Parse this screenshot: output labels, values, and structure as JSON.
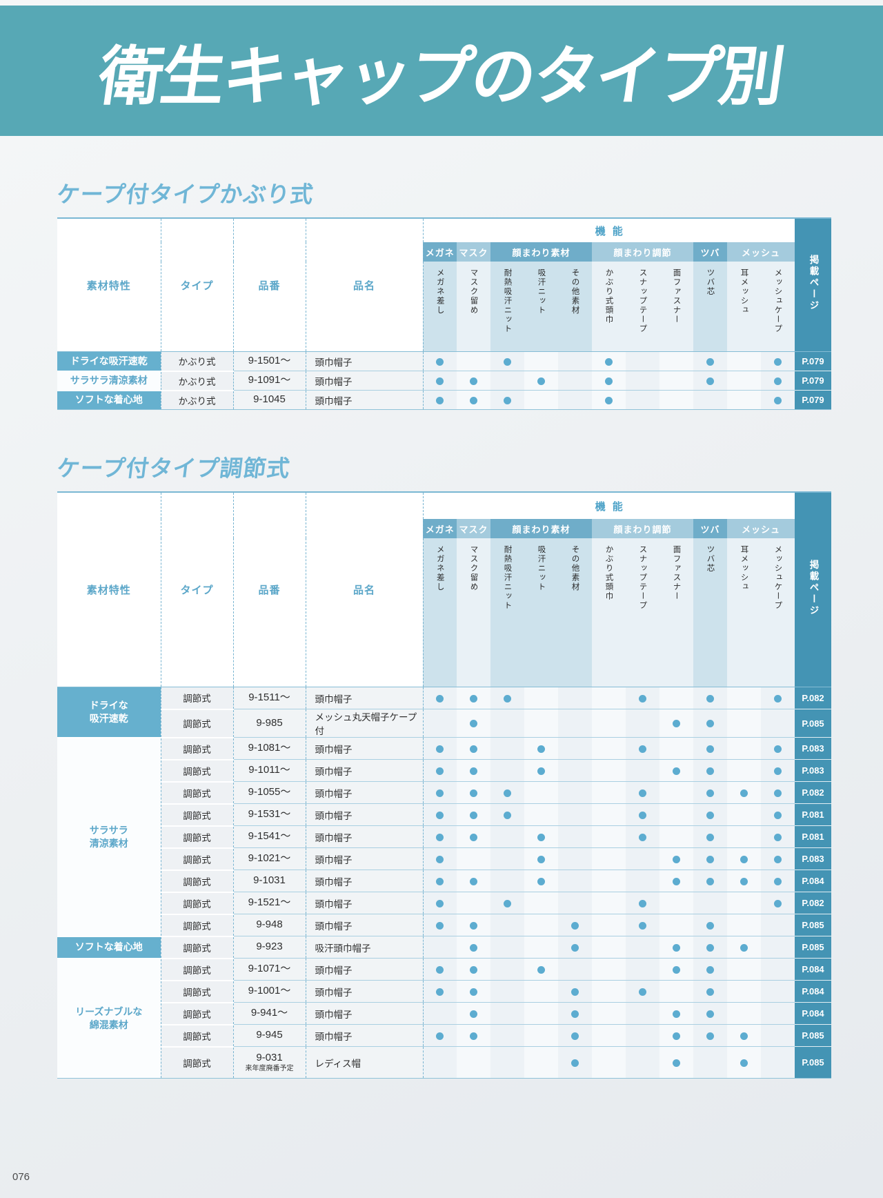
{
  "banner": {
    "title": "衛生キャップのタイプ別"
  },
  "page": {
    "footer_page_number": "076"
  },
  "colors": {
    "banner_bg": "#57a8b5",
    "section_title": "#70b6d6",
    "group_header_dark": "#6fadc9",
    "group_header_light": "#a4cbdd",
    "page_column": "#4494b4",
    "dot": "#5cacd0",
    "material_blue": "#66b0ce"
  },
  "columns": {
    "left": [
      "素材特性",
      "タイプ",
      "品番",
      "品名"
    ],
    "function_label": "機能",
    "page_label": "掲載ページ",
    "groups": [
      {
        "label": "メガネ",
        "cols": [
          "メガネ差し"
        ]
      },
      {
        "label": "マスク",
        "cols": [
          "マスク留め"
        ]
      },
      {
        "label": "顔まわり素材",
        "cols": [
          "耐熱吸汗ニット",
          "吸汗ニット",
          "その他素材"
        ]
      },
      {
        "label": "顔まわり調節",
        "cols": [
          "かぶり式頭巾",
          "スナップテープ",
          "面ファスナー"
        ]
      },
      {
        "label": "ツバ",
        "cols": [
          "ツバ芯"
        ]
      },
      {
        "label": "メッシュ",
        "cols": [
          "耳メッシュ",
          "メッシュケープ"
        ]
      }
    ]
  },
  "sections": [
    {
      "title": "ケープ付タイプかぶり式",
      "rows": [
        {
          "material": {
            "lines": [
              "ドライな吸汗速乾"
            ],
            "span": 1,
            "variant": "blue"
          },
          "type": "かぶり式",
          "code": "9-1501〜",
          "name": "頭巾帽子",
          "dots": [
            1,
            3,
            6,
            9,
            11
          ],
          "page": "P.079"
        },
        {
          "material": {
            "lines": [
              "サラサラ清涼素材"
            ],
            "span": 1,
            "variant": "white"
          },
          "type": "かぶり式",
          "code": "9-1091〜",
          "name": "頭巾帽子",
          "dots": [
            1,
            2,
            4,
            6,
            9,
            11
          ],
          "page": "P.079"
        },
        {
          "material": {
            "lines": [
              "ソフトな着心地"
            ],
            "span": 1,
            "variant": "blue"
          },
          "type": "かぶり式",
          "code": "9-1045",
          "name": "頭巾帽子",
          "dots": [
            1,
            2,
            3,
            6,
            11
          ],
          "page": "P.079"
        }
      ]
    },
    {
      "title": "ケープ付タイプ調節式",
      "rows": [
        {
          "material": {
            "lines": [
              "ドライな",
              "吸汗速乾"
            ],
            "span": 2,
            "variant": "blue"
          },
          "type": "調節式",
          "code": "9-1511〜",
          "name": "頭巾帽子",
          "dots": [
            1,
            2,
            3,
            7,
            9,
            11
          ],
          "page": "P.082"
        },
        {
          "type": "調節式",
          "code": "9-985",
          "name": "メッシュ丸天帽子ケープ付",
          "dots": [
            2,
            8,
            9
          ],
          "page": "P.085"
        },
        {
          "material": {
            "lines": [
              "サラサラ",
              "清涼素材"
            ],
            "span": 9,
            "variant": "white"
          },
          "type": "調節式",
          "code": "9-1081〜",
          "name": "頭巾帽子",
          "dots": [
            1,
            2,
            4,
            7,
            9,
            11
          ],
          "page": "P.083"
        },
        {
          "type": "調節式",
          "code": "9-1011〜",
          "name": "頭巾帽子",
          "dots": [
            1,
            2,
            4,
            8,
            9,
            11
          ],
          "page": "P.083"
        },
        {
          "type": "調節式",
          "code": "9-1055〜",
          "name": "頭巾帽子",
          "dots": [
            1,
            2,
            3,
            7,
            9,
            10,
            11
          ],
          "page": "P.082"
        },
        {
          "type": "調節式",
          "code": "9-1531〜",
          "name": "頭巾帽子",
          "dots": [
            1,
            2,
            3,
            7,
            9,
            11
          ],
          "page": "P.081"
        },
        {
          "type": "調節式",
          "code": "9-1541〜",
          "name": "頭巾帽子",
          "dots": [
            1,
            2,
            4,
            7,
            9,
            11
          ],
          "page": "P.081"
        },
        {
          "type": "調節式",
          "code": "9-1021〜",
          "name": "頭巾帽子",
          "dots": [
            1,
            4,
            8,
            9,
            10,
            11
          ],
          "page": "P.083"
        },
        {
          "type": "調節式",
          "code": "9-1031",
          "name": "頭巾帽子",
          "dots": [
            1,
            2,
            4,
            8,
            9,
            10,
            11
          ],
          "page": "P.084"
        },
        {
          "type": "調節式",
          "code": "9-1521〜",
          "name": "頭巾帽子",
          "dots": [
            1,
            3,
            7,
            11
          ],
          "page": "P.082"
        },
        {
          "type": "調節式",
          "code": "9-948",
          "name": "頭巾帽子",
          "dots": [
            1,
            2,
            5,
            7,
            9
          ],
          "page": "P.085"
        },
        {
          "material": {
            "lines": [
              "ソフトな着心地"
            ],
            "span": 1,
            "variant": "blue"
          },
          "type": "調節式",
          "code": "9-923",
          "name": "吸汗頭巾帽子",
          "dots": [
            2,
            5,
            8,
            9,
            10
          ],
          "page": "P.085"
        },
        {
          "material": {
            "lines": [
              "リーズナブルな",
              "綿混素材"
            ],
            "span": 5,
            "variant": "white"
          },
          "type": "調節式",
          "code": "9-1071〜",
          "name": "頭巾帽子",
          "dots": [
            1,
            2,
            4,
            8,
            9
          ],
          "page": "P.084"
        },
        {
          "type": "調節式",
          "code": "9-1001〜",
          "name": "頭巾帽子",
          "dots": [
            1,
            2,
            5,
            7,
            9
          ],
          "page": "P.084"
        },
        {
          "type": "調節式",
          "code": "9-941〜",
          "name": "頭巾帽子",
          "dots": [
            2,
            5,
            8,
            9
          ],
          "page": "P.084"
        },
        {
          "type": "調節式",
          "code": "9-945",
          "name": "頭巾帽子",
          "dots": [
            1,
            2,
            5,
            8,
            9,
            10
          ],
          "page": "P.085"
        },
        {
          "type": "調節式",
          "code": "9-031",
          "code_note": "来年度廃番予定",
          "name": "レディス帽",
          "dots": [
            5,
            8,
            10
          ],
          "page": "P.085",
          "tall": true
        }
      ]
    }
  ]
}
